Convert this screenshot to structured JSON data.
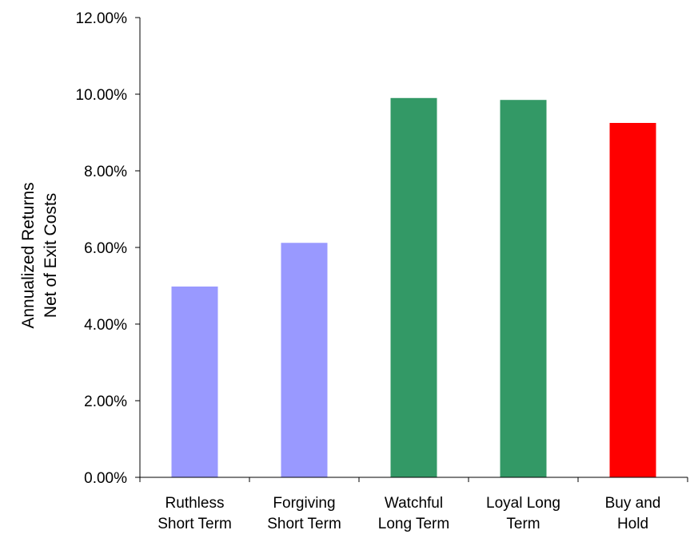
{
  "chart_data": {
    "type": "bar",
    "title": "",
    "categories": [
      [
        "Ruthless",
        "Short Term"
      ],
      [
        "Forgiving",
        "Short Term"
      ],
      [
        "Watchful",
        "Long Term"
      ],
      [
        "Loyal Long",
        "Term"
      ],
      [
        "Buy and",
        "Hold"
      ]
    ],
    "values": [
      4.98,
      6.12,
      9.9,
      9.85,
      9.25
    ],
    "bar_colors": [
      "#9999ff",
      "#9999ff",
      "#339966",
      "#339966",
      "#ff0000"
    ],
    "ylabel": [
      "Annualized Returns",
      "Net of Exit Costs"
    ],
    "xlabel": "",
    "ylim": [
      0,
      12
    ],
    "yticks": [
      0,
      2,
      4,
      6,
      8,
      10,
      12
    ],
    "ytick_labels": [
      "0.00%",
      "2.00%",
      "4.00%",
      "6.00%",
      "8.00%",
      "10.00%",
      "12.00%"
    ],
    "grid": false,
    "legend": "none"
  }
}
